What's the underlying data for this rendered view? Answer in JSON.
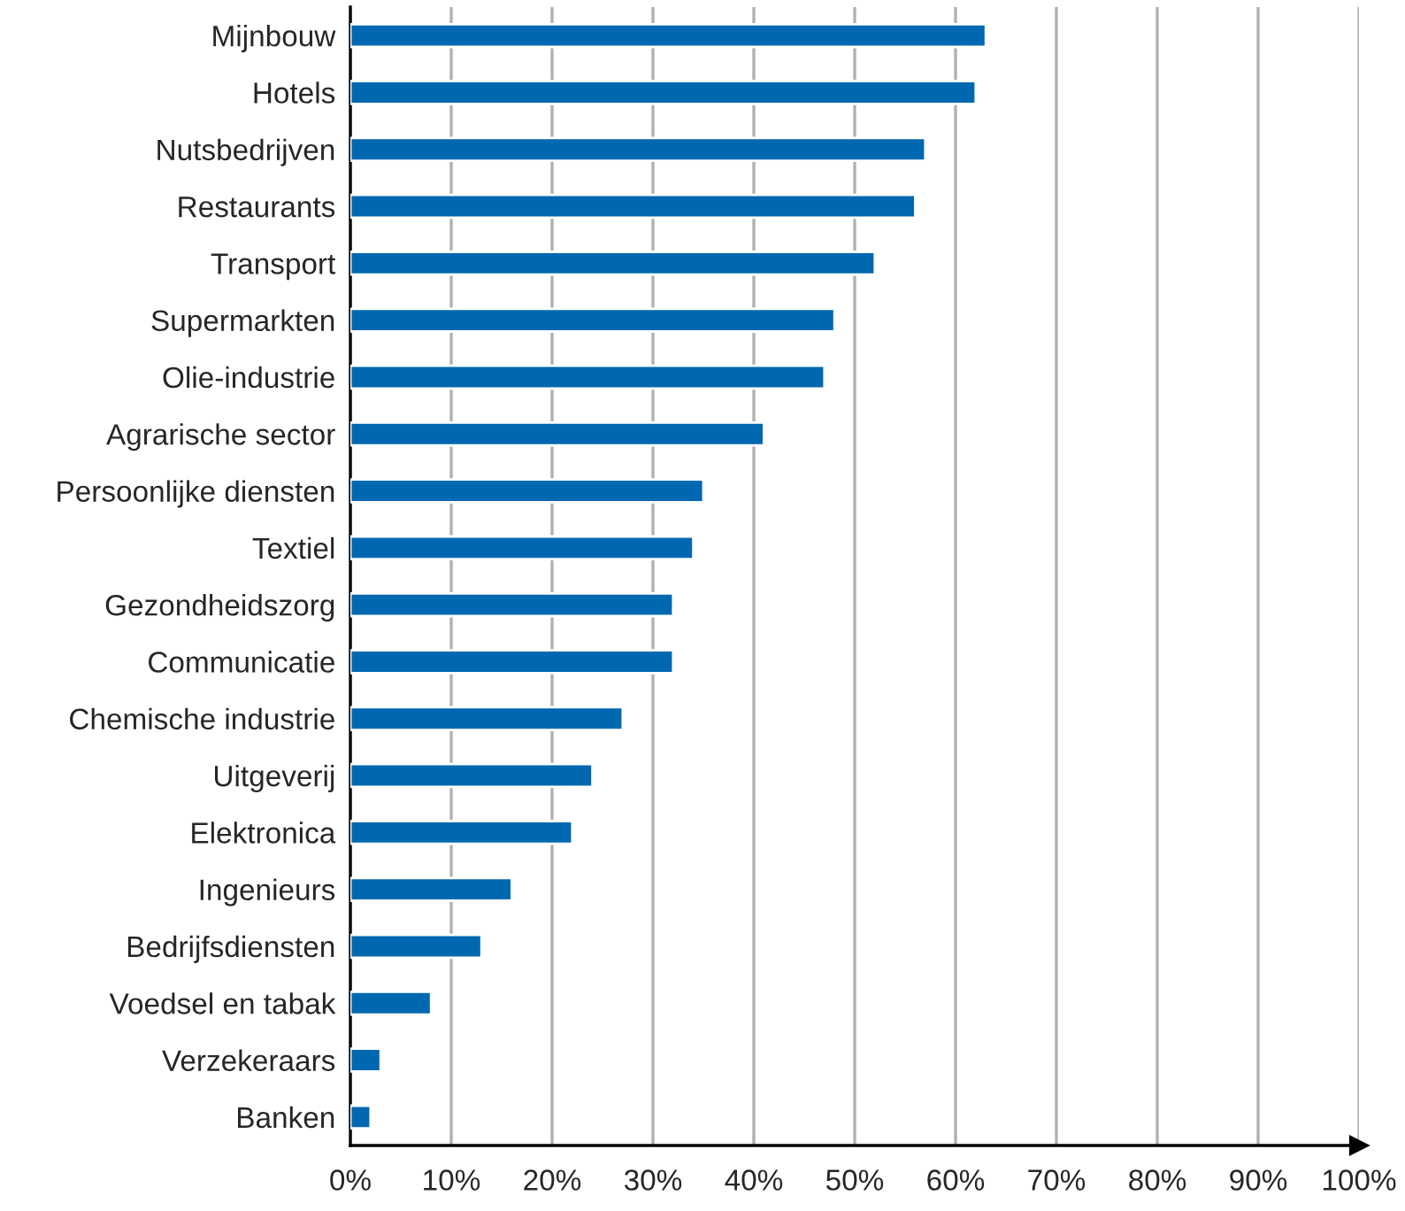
{
  "chart_data": {
    "type": "bar",
    "orientation": "horizontal",
    "categories": [
      "Mijnbouw",
      "Hotels",
      "Nutsbedrijven",
      "Restaurants",
      "Transport",
      "Supermarkten",
      "Olie-industrie",
      "Agrarische sector",
      "Persoonlijke diensten",
      "Textiel",
      "Gezondheidszorg",
      "Communicatie",
      "Chemische industrie",
      "Uitgeverij",
      "Elektronica",
      "Ingenieurs",
      "Bedrijfsdiensten",
      "Voedsel en tabak",
      "Verzekeraars",
      "Banken"
    ],
    "values": [
      63,
      62,
      57,
      56,
      52,
      48,
      47,
      41,
      35,
      34,
      32,
      32,
      27,
      24,
      22,
      16,
      13,
      8,
      3,
      2
    ],
    "color": "#0068b0",
    "xlim": [
      0,
      100
    ],
    "xticks": [
      {
        "value": 0,
        "label": "0%"
      },
      {
        "value": 10,
        "label": "10%"
      },
      {
        "value": 20,
        "label": "20%"
      },
      {
        "value": 30,
        "label": "30%"
      },
      {
        "value": 40,
        "label": "40%"
      },
      {
        "value": 50,
        "label": "50%"
      },
      {
        "value": 60,
        "label": "60%"
      },
      {
        "value": 70,
        "label": "70%"
      },
      {
        "value": 80,
        "label": "80%"
      },
      {
        "value": 90,
        "label": "90%"
      },
      {
        "value": 100,
        "label": "100%"
      }
    ],
    "grid": "x",
    "legend": false
  }
}
